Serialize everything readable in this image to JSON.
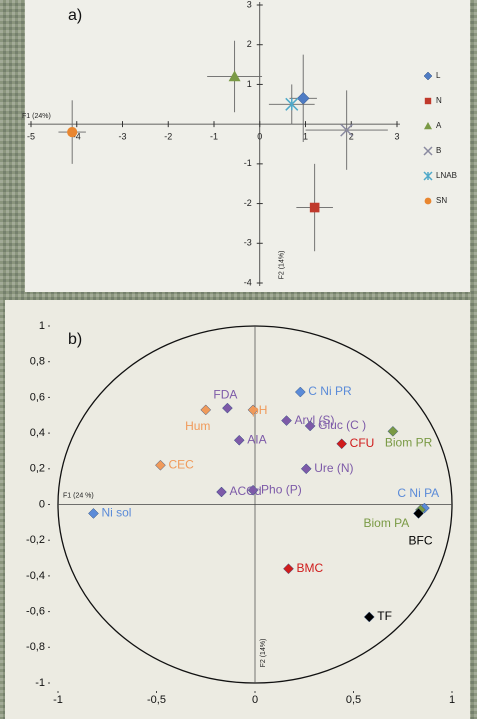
{
  "chart_data": [
    {
      "type": "errorscatter",
      "panel_label": "a)",
      "x_label": "F1 (24%)",
      "y_label": "F2 (14%)",
      "xlim": [
        -5,
        3
      ],
      "ylim": [
        -4,
        3
      ],
      "xticks": [
        -5,
        -4,
        -3,
        -2,
        -1,
        0,
        1,
        2,
        3
      ],
      "yticks": [
        -4,
        -3,
        -2,
        -1,
        1,
        2,
        3
      ],
      "grid": false,
      "series": [
        {
          "name": "L",
          "color": "#4f7cc4",
          "marker": "diamond",
          "x": [
            0.95
          ],
          "values": [
            0.65
          ],
          "xerr": [
            0.3
          ],
          "yerr": [
            1.1
          ]
        },
        {
          "name": "N",
          "color": "#c0392b",
          "marker": "square",
          "x": [
            1.2
          ],
          "values": [
            -2.1
          ],
          "xerr": [
            0.4
          ],
          "yerr": [
            1.1
          ]
        },
        {
          "name": "A",
          "color": "#7a9a45",
          "marker": "triangle",
          "x": [
            -0.55
          ],
          "values": [
            1.2
          ],
          "xerr": [
            0.6
          ],
          "yerr": [
            0.9
          ]
        },
        {
          "name": "B",
          "color": "#8a8aa0",
          "marker": "cross",
          "x": [
            1.9
          ],
          "values": [
            -0.15
          ],
          "xerr": [
            0.9
          ],
          "yerr": [
            1.0
          ]
        },
        {
          "name": "LNAB",
          "color": "#4fa9c9",
          "marker": "asterisk",
          "x": [
            0.7
          ],
          "values": [
            0.5
          ],
          "xerr": [
            0.5
          ],
          "yerr": [
            0.5
          ]
        },
        {
          "name": "SN",
          "color": "#e9862f",
          "marker": "circle",
          "x": [
            -4.1
          ],
          "values": [
            -0.2
          ],
          "xerr": [
            0.3
          ],
          "yerr": [
            0.8
          ]
        }
      ]
    },
    {
      "type": "labelscatter",
      "panel_label": "b)",
      "x_label": "F1 (24 %)",
      "y_label": "F2 (14%)",
      "xlim": [
        -1,
        1
      ],
      "ylim": [
        -1,
        1
      ],
      "xticks": [
        -1,
        {
          "value": -0.5,
          "label": "-0,5"
        },
        0,
        {
          "value": 0.5,
          "label": "0,5"
        },
        1
      ],
      "yticks": [
        -1,
        {
          "value": -0.8,
          "label": "-0,8"
        },
        {
          "value": -0.6,
          "label": "-0,6"
        },
        {
          "value": -0.4,
          "label": "-0,4"
        },
        {
          "value": -0.2,
          "label": "-0,2"
        },
        0,
        {
          "value": 0.2,
          "label": "0,2"
        },
        {
          "value": 0.4,
          "label": "0,4"
        },
        {
          "value": 0.6,
          "label": "0,6"
        },
        {
          "value": 0.8,
          "label": "0,8"
        },
        1
      ],
      "grid": false,
      "circle": true,
      "labels": [
        "Ni sol",
        "CEC",
        "Hum",
        "FDA",
        "pH",
        "AIA",
        "ACCd",
        "Pho (P)",
        "C Ni PR",
        "Aryl (S)",
        "Gluc (C )",
        "Ure (N)",
        "CFU",
        "Biom PR",
        "C Ni PA",
        "Biom PA",
        "BFC",
        "BMC",
        "TF"
      ],
      "x": [
        -0.82,
        -0.48,
        -0.25,
        -0.14,
        -0.01,
        -0.08,
        -0.17,
        -0.01,
        0.23,
        0.16,
        0.28,
        0.26,
        0.44,
        0.7,
        0.86,
        0.84,
        0.83,
        0.17,
        0.58
      ],
      "values": [
        -0.05,
        0.22,
        0.53,
        0.54,
        0.53,
        0.36,
        0.07,
        0.08,
        0.63,
        0.47,
        0.44,
        0.2,
        0.34,
        0.41,
        -0.02,
        -0.03,
        -0.05,
        -0.36,
        -0.63
      ],
      "colors": [
        "#5b8bd8",
        "#f09a5a",
        "#f09a5a",
        "#7d5aa8",
        "#f09a5a",
        "#7d5aa8",
        "#7d5aa8",
        "#7d5aa8",
        "#5b8bd8",
        "#7d5aa8",
        "#7d5aa8",
        "#7d5aa8",
        "#d01c1c",
        "#7a9a45",
        "#5b8bd8",
        "#7a9a45",
        "#000000",
        "#d01c1c",
        "#000000"
      ]
    }
  ]
}
